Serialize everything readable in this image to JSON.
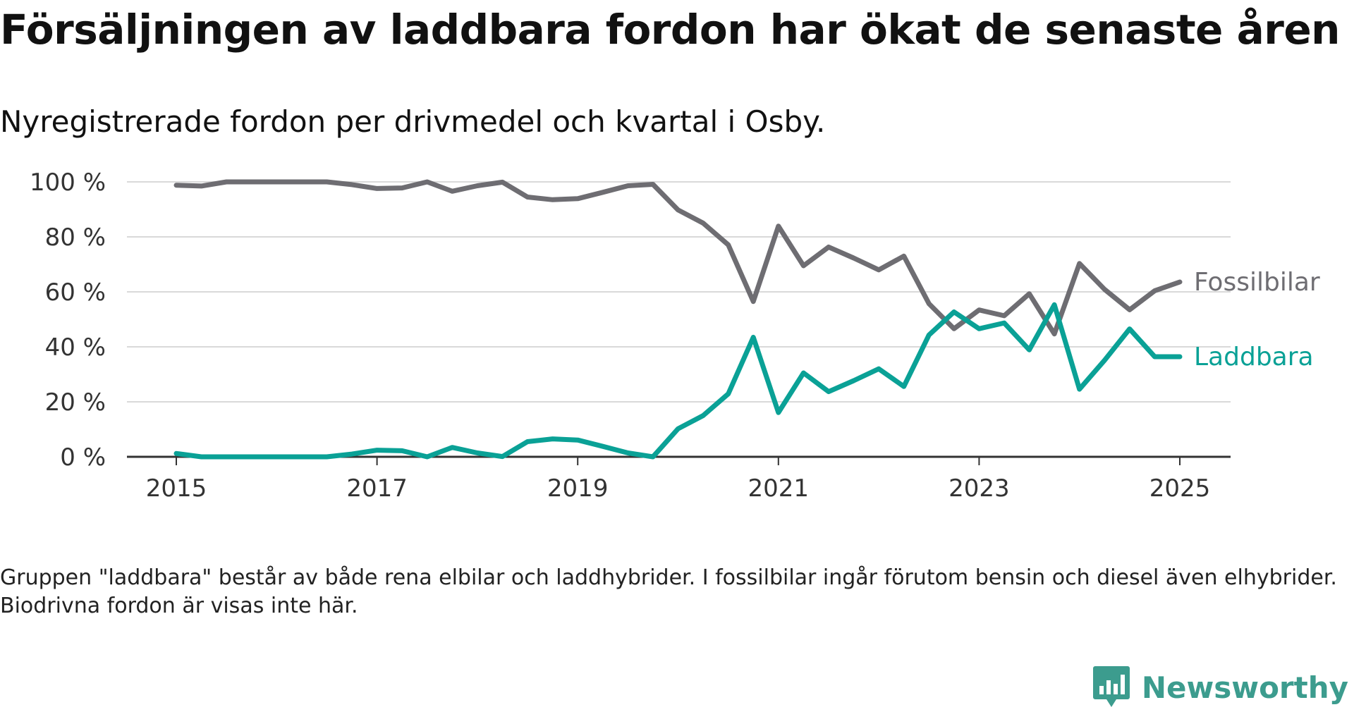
{
  "title": "Försäljningen av laddbara fordon har ökat de senaste åren",
  "subtitle": "Nyregistrerade fordon per drivmedel och kvartal i Osby.",
  "note": "Gruppen \"laddbara\" består av både rena elbilar och laddhybrider. I fossilbilar ingår förutom bensin och diesel även elhybrider. Biodrivna fordon är visas inte här.",
  "brand": "Newsworthy",
  "colors": {
    "fossil": "#6e6d72",
    "laddbara": "#0aa196",
    "grid": "#d9d9d9",
    "axis": "#333333",
    "brand": "#3c9c8e"
  },
  "chart_data": {
    "type": "line",
    "xlabel": "",
    "ylabel": "",
    "x_unit": "år",
    "y_unit": "%",
    "ylim": [
      0,
      100
    ],
    "yticks": [
      0,
      20,
      40,
      60,
      80,
      100
    ],
    "ytick_labels": [
      "0 %",
      "20 %",
      "40 %",
      "60 %",
      "80 %",
      "100 %"
    ],
    "xlim": [
      2015,
      2025.5
    ],
    "xticks": [
      2015,
      2017,
      2019,
      2021,
      2023,
      2025
    ],
    "xtick_labels": [
      "2015",
      "2017",
      "2019",
      "2021",
      "2023",
      "2025"
    ],
    "grid": true,
    "legend": "direct labels at line ends",
    "series": [
      {
        "name": "Fossilbilar",
        "color": "#6e6d72",
        "x": [
          2015,
          2015.25,
          2015.5,
          2015.75,
          2016,
          2016.25,
          2016.5,
          2016.75,
          2017,
          2017.25,
          2017.5,
          2017.75,
          2018,
          2018.25,
          2018.5,
          2018.75,
          2019,
          2019.25,
          2019.5,
          2019.75,
          2020,
          2020.25,
          2020.5,
          2020.75,
          2021,
          2021.25,
          2021.5,
          2021.75,
          2022,
          2022.25,
          2022.5,
          2022.75,
          2023,
          2023.25,
          2023.5,
          2023.75,
          2024,
          2024.25,
          2024.5,
          2024.75,
          2025
        ],
        "values": [
          98.8,
          98.5,
          100,
          100,
          100,
          100,
          100,
          99,
          97.6,
          97.8,
          100,
          96.6,
          98.6,
          99.9,
          94.5,
          93.5,
          93.9,
          96.2,
          98.6,
          99.1,
          89.8,
          85,
          77.1,
          56.5,
          83.9,
          69.5,
          76.3,
          72.3,
          68,
          73,
          55.7,
          46.6,
          53.4,
          51.3,
          59.3,
          44.7,
          70.3,
          60.9,
          53.5,
          60.4,
          63.6
        ]
      },
      {
        "name": "Laddbara",
        "color": "#0aa196",
        "x": [
          2015,
          2015.25,
          2015.5,
          2015.75,
          2016,
          2016.25,
          2016.5,
          2016.75,
          2017,
          2017.25,
          2017.5,
          2017.75,
          2018,
          2018.25,
          2018.5,
          2018.75,
          2019,
          2019.25,
          2019.5,
          2019.75,
          2020,
          2020.25,
          2020.5,
          2020.75,
          2021,
          2021.25,
          2021.5,
          2021.75,
          2022,
          2022.25,
          2022.5,
          2022.75,
          2023,
          2023.25,
          2023.5,
          2023.75,
          2024,
          2024.25,
          2024.5,
          2024.75,
          2025
        ],
        "values": [
          1.2,
          0,
          0,
          0,
          0,
          0,
          0,
          1,
          2.4,
          2.2,
          0,
          3.4,
          1.4,
          0.1,
          5.5,
          6.5,
          6.1,
          3.8,
          1.4,
          0,
          10.2,
          15,
          22.9,
          43.5,
          16.1,
          30.5,
          23.7,
          27.7,
          32,
          25.6,
          44.3,
          52.7,
          46.6,
          48.7,
          38.9,
          55.3,
          24.6,
          35.1,
          46.5,
          36.4,
          36.4
        ]
      }
    ]
  }
}
